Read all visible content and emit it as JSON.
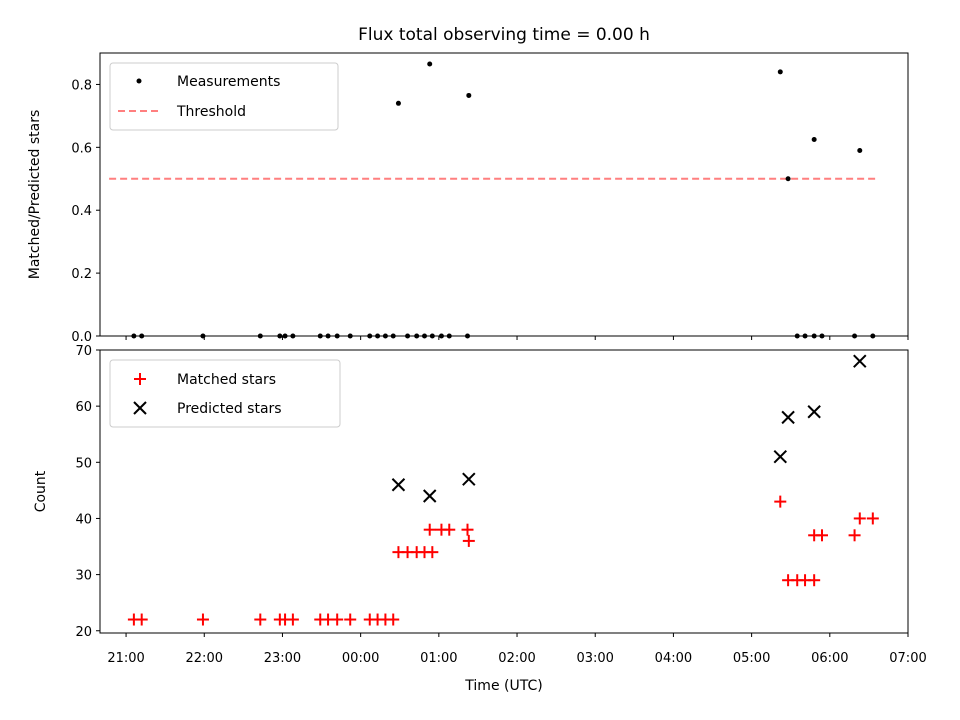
{
  "chart_data": [
    {
      "type": "scatter",
      "title": "Flux total observing time = 0.00 h",
      "xlabel": "",
      "ylabel": "Matched/Predicted stars",
      "ylim": [
        0,
        0.9
      ],
      "yticks": [
        0.0,
        0.2,
        0.4,
        0.6,
        0.8
      ],
      "ytick_labels": [
        "0.0",
        "0.2",
        "0.4",
        "0.6",
        "0.8"
      ],
      "legend": {
        "placement": "top-left",
        "entries": [
          "Measurements",
          "Threshold"
        ]
      },
      "series": [
        {
          "name": "Measurements",
          "color": "#000000",
          "marker": "dot",
          "points": [
            [
              "21:06",
              0
            ],
            [
              "21:12",
              0
            ],
            [
              "21:59",
              0
            ],
            [
              "22:43",
              0
            ],
            [
              "22:58",
              0
            ],
            [
              "23:02",
              0
            ],
            [
              "23:08",
              0
            ],
            [
              "23:29",
              0
            ],
            [
              "23:35",
              0
            ],
            [
              "23:42",
              0
            ],
            [
              "23:52",
              0
            ],
            [
              "00:07",
              0
            ],
            [
              "00:13",
              0
            ],
            [
              "00:19",
              0
            ],
            [
              "00:25",
              0
            ],
            [
              "00:29",
              0.74
            ],
            [
              "00:36",
              0
            ],
            [
              "00:43",
              0
            ],
            [
              "00:49",
              0
            ],
            [
              "00:53",
              0.865
            ],
            [
              "00:55",
              0
            ],
            [
              "01:02",
              0
            ],
            [
              "01:08",
              0
            ],
            [
              "01:22",
              0
            ],
            [
              "01:23",
              0.765
            ],
            [
              "05:22",
              0.84
            ],
            [
              "05:28",
              0.5
            ],
            [
              "05:35",
              0
            ],
            [
              "05:41",
              0
            ],
            [
              "05:48",
              0
            ],
            [
              "05:48",
              0.625
            ],
            [
              "05:54",
              0
            ],
            [
              "06:19",
              0
            ],
            [
              "06:23",
              0.59
            ],
            [
              "06:33",
              0
            ]
          ]
        },
        {
          "name": "Threshold",
          "color": "#ff7f7f",
          "style": "dashed",
          "points": [
            [
              "20:47",
              0.5
            ],
            [
              "06:35",
              0.5
            ]
          ]
        }
      ]
    },
    {
      "type": "scatter",
      "title": "",
      "xlabel": "Time (UTC)",
      "ylabel": "Count",
      "ylim": [
        19.6,
        70
      ],
      "yticks": [
        20,
        30,
        40,
        50,
        60,
        70
      ],
      "ytick_labels": [
        "20",
        "30",
        "40",
        "50",
        "60",
        "70"
      ],
      "xlim": [
        "20:40",
        "07:00"
      ],
      "xticks": [
        "21:00",
        "22:00",
        "23:00",
        "00:00",
        "01:00",
        "02:00",
        "03:00",
        "04:00",
        "05:00",
        "06:00",
        "07:00"
      ],
      "legend": {
        "placement": "top-left",
        "entries": [
          "Matched stars",
          "Predicted stars"
        ]
      },
      "series": [
        {
          "name": "Matched stars",
          "color": "#ff0000",
          "marker": "plus",
          "points": [
            [
              "21:06",
              22
            ],
            [
              "21:12",
              22
            ],
            [
              "21:59",
              22
            ],
            [
              "22:43",
              22
            ],
            [
              "22:58",
              22
            ],
            [
              "23:02",
              22
            ],
            [
              "23:08",
              22
            ],
            [
              "23:29",
              22
            ],
            [
              "23:35",
              22
            ],
            [
              "23:42",
              22
            ],
            [
              "23:52",
              22
            ],
            [
              "00:07",
              22
            ],
            [
              "00:13",
              22
            ],
            [
              "00:19",
              22
            ],
            [
              "00:25",
              22
            ],
            [
              "00:29",
              34
            ],
            [
              "00:36",
              34
            ],
            [
              "00:43",
              34
            ],
            [
              "00:49",
              34
            ],
            [
              "00:53",
              38
            ],
            [
              "00:55",
              34
            ],
            [
              "01:02",
              38
            ],
            [
              "01:08",
              38
            ],
            [
              "01:22",
              38
            ],
            [
              "01:23",
              36
            ],
            [
              "05:22",
              43
            ],
            [
              "05:28",
              29
            ],
            [
              "05:35",
              29
            ],
            [
              "05:41",
              29
            ],
            [
              "05:48",
              37
            ],
            [
              "05:54",
              37
            ],
            [
              "05:48",
              29
            ],
            [
              "06:19",
              37
            ],
            [
              "06:23",
              40
            ],
            [
              "06:33",
              40
            ]
          ]
        },
        {
          "name": "Predicted stars",
          "color": "#000000",
          "marker": "x",
          "points": [
            [
              "00:29",
              46
            ],
            [
              "00:53",
              44
            ],
            [
              "01:23",
              47
            ],
            [
              "05:22",
              51
            ],
            [
              "05:28",
              58
            ],
            [
              "05:48",
              59
            ],
            [
              "06:23",
              68
            ]
          ]
        }
      ]
    }
  ]
}
